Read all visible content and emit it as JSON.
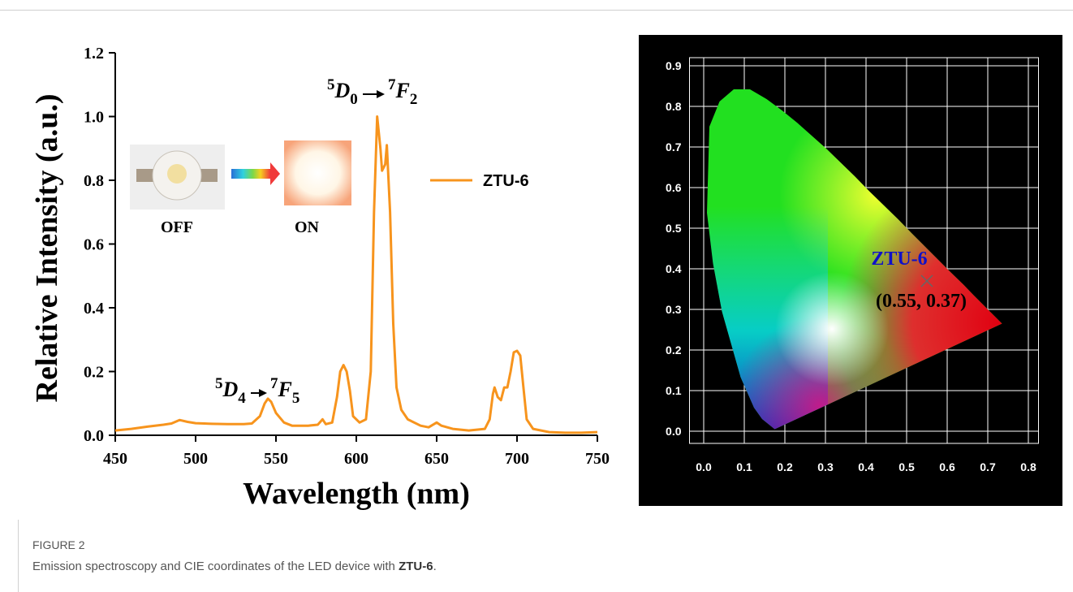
{
  "chart_data": [
    {
      "type": "line",
      "x_label": "Wavelength (nm)",
      "y_label": "Relative Intensity (a.u.)",
      "x": [
        450,
        460,
        470,
        480,
        485,
        490,
        495,
        500,
        510,
        520,
        530,
        535,
        540,
        543,
        545,
        547,
        550,
        555,
        560,
        570,
        576,
        579,
        581,
        585,
        588,
        590,
        592,
        594,
        596,
        598,
        602,
        606,
        609,
        611,
        613,
        615,
        616,
        618,
        619,
        621,
        623,
        625,
        628,
        632,
        640,
        645,
        650,
        653,
        660,
        670,
        680,
        683,
        685,
        686,
        688,
        690,
        692,
        694,
        696,
        698,
        700,
        702,
        704,
        706,
        710,
        720,
        730,
        740,
        750
      ],
      "series": [
        {
          "name": "ZTU-6",
          "color": "#f7941d",
          "values": [
            0.015,
            0.02,
            0.027,
            0.033,
            0.037,
            0.048,
            0.042,
            0.038,
            0.036,
            0.035,
            0.035,
            0.037,
            0.06,
            0.1,
            0.115,
            0.105,
            0.07,
            0.04,
            0.03,
            0.03,
            0.033,
            0.05,
            0.035,
            0.04,
            0.12,
            0.2,
            0.22,
            0.2,
            0.14,
            0.06,
            0.04,
            0.05,
            0.2,
            0.7,
            1.0,
            0.9,
            0.83,
            0.85,
            0.91,
            0.7,
            0.35,
            0.15,
            0.08,
            0.05,
            0.03,
            0.025,
            0.04,
            0.03,
            0.02,
            0.015,
            0.02,
            0.05,
            0.13,
            0.15,
            0.12,
            0.11,
            0.15,
            0.15,
            0.2,
            0.26,
            0.265,
            0.25,
            0.15,
            0.05,
            0.02,
            0.01,
            0.008,
            0.008,
            0.01
          ]
        }
      ],
      "xlim": [
        450,
        750
      ],
      "xticks": [
        450,
        500,
        550,
        600,
        650,
        700,
        750
      ],
      "ylim": [
        0,
        1.2
      ],
      "yticks": [
        {
          "value": 0,
          "label": "0.0"
        },
        0.2,
        0.4,
        0.6,
        0.8,
        {
          "value": 1,
          "label": "1.0"
        },
        1.2
      ],
      "annotations": [
        [
          {
            "sup": "5",
            "letter": "D",
            "sub": "0"
          },
          {
            "sup": "7",
            "letter": "F",
            "sub": "2"
          }
        ],
        [
          {
            "sup": "5",
            "letter": "D",
            "sub": "4"
          },
          {
            "sup": "7",
            "letter": "F",
            "sub": "5"
          }
        ]
      ],
      "inset_labels": [
        "OFF",
        "ON"
      ]
    },
    {
      "type": "scatter",
      "x": [
        0.55
      ],
      "series": [
        {
          "name": "ZTU-6",
          "color": "#1010c8",
          "values": [
            0.37
          ]
        }
      ],
      "point_label": "(0.55, 0.37)",
      "xlim": [
        -0.035,
        0.825
      ],
      "xticks": [
        {
          "value": 0,
          "label": "0.0"
        },
        0.1,
        0.2,
        0.3,
        0.4,
        0.5,
        0.6,
        0.7,
        0.8
      ],
      "ylim": [
        -0.03,
        0.92
      ],
      "yticks": [
        {
          "value": 0,
          "label": "0.0"
        },
        0.1,
        0.2,
        0.3,
        0.4,
        0.5,
        0.6,
        0.7,
        0.8,
        0.9
      ],
      "grid": true
    }
  ],
  "caption": {
    "label": "FIGURE 2",
    "text": "Emission spectroscopy and CIE coordinates of the LED device with ",
    "bold": "ZTU-6",
    "end": "."
  }
}
